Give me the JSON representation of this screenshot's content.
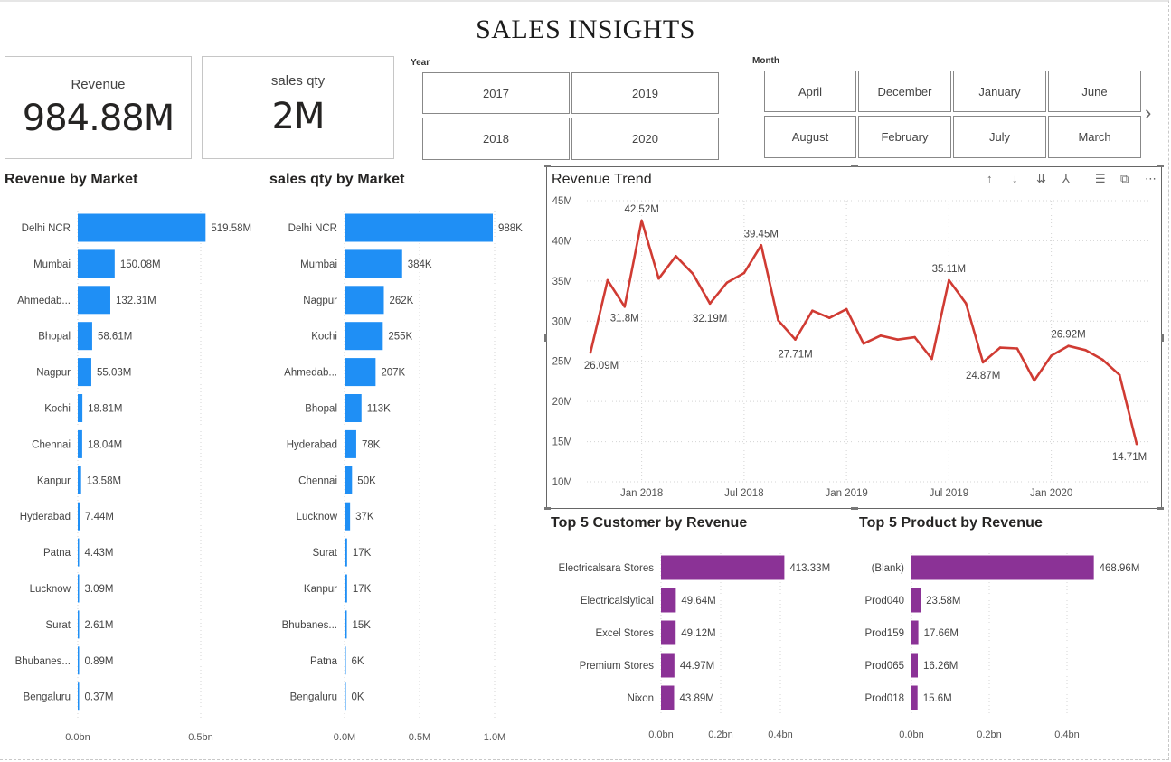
{
  "page": {
    "title": "SALES INSIGHTS"
  },
  "cards": {
    "revenue": {
      "label": "Revenue",
      "value": "984.88M"
    },
    "qty": {
      "label": "sales qty",
      "value": "2M"
    }
  },
  "year_slicer": {
    "title": "Year",
    "options": [
      "2017",
      "2019",
      "2018",
      "2020"
    ]
  },
  "month_slicer": {
    "title": "Month",
    "options": [
      "April",
      "December",
      "January",
      "June",
      "August",
      "February",
      "July",
      "March"
    ],
    "next_icon": "chevron-right-icon"
  },
  "trend_tools": {
    "icons": [
      "arrow-up-icon",
      "arrow-down-icon",
      "double-arrow-down-icon",
      "expand-hierarchy-icon",
      "filter-icon",
      "focus-mode-icon",
      "more-options-icon"
    ],
    "glyphs": [
      "↑",
      "↓",
      "⇊",
      "⅄",
      "☰",
      "⧉",
      "⋯"
    ]
  },
  "colors": {
    "blue": "#1f8ff5",
    "red": "#d03b33",
    "purple": "#8b3296",
    "grid": "#d4d4d4"
  },
  "chart_data": [
    {
      "id": "revenue_by_market",
      "type": "bar",
      "orientation": "horizontal",
      "title": "Revenue by Market",
      "categories": [
        "Delhi NCR",
        "Mumbai",
        "Ahmedab...",
        "Bhopal",
        "Nagpur",
        "Kochi",
        "Chennai",
        "Kanpur",
        "Hyderabad",
        "Patna",
        "Lucknow",
        "Surat",
        "Bhubanes...",
        "Bengaluru"
      ],
      "values": [
        519.58,
        150.08,
        132.31,
        58.61,
        55.03,
        18.81,
        18.04,
        13.58,
        7.44,
        4.43,
        3.09,
        2.61,
        0.89,
        0.37
      ],
      "labels": [
        "519.58M",
        "150.08M",
        "132.31M",
        "58.61M",
        "55.03M",
        "18.81M",
        "18.04M",
        "13.58M",
        "7.44M",
        "4.43M",
        "3.09M",
        "2.61M",
        "0.89M",
        "0.37M"
      ],
      "unit": "M",
      "xlim": [
        0,
        500
      ],
      "xticks": [
        0,
        500
      ],
      "xtick_labels": [
        "0.0bn",
        "0.5bn"
      ]
    },
    {
      "id": "qty_by_market",
      "type": "bar",
      "orientation": "horizontal",
      "title": "sales qty by Market",
      "categories": [
        "Delhi NCR",
        "Mumbai",
        "Nagpur",
        "Kochi",
        "Ahmedab...",
        "Bhopal",
        "Hyderabad",
        "Chennai",
        "Lucknow",
        "Surat",
        "Kanpur",
        "Bhubanes...",
        "Patna",
        "Bengaluru"
      ],
      "values": [
        988,
        384,
        262,
        255,
        207,
        113,
        78,
        50,
        37,
        17,
        17,
        15,
        6,
        0
      ],
      "labels": [
        "988K",
        "384K",
        "262K",
        "255K",
        "207K",
        "113K",
        "78K",
        "50K",
        "37K",
        "17K",
        "17K",
        "15K",
        "6K",
        "0K"
      ],
      "unit": "K",
      "xlim": [
        0,
        1000
      ],
      "xticks": [
        0,
        500,
        1000
      ],
      "xtick_labels": [
        "0.0M",
        "0.5M",
        "1.0M"
      ]
    },
    {
      "id": "revenue_trend",
      "type": "line",
      "title": "Revenue Trend",
      "x": [
        "2017-10",
        "2017-11",
        "2017-12",
        "2018-01",
        "2018-02",
        "2018-03",
        "2018-04",
        "2018-05",
        "2018-06",
        "2018-07",
        "2018-08",
        "2018-09",
        "2018-10",
        "2018-11",
        "2018-12",
        "2019-01",
        "2019-02",
        "2019-03",
        "2019-04",
        "2019-05",
        "2019-06",
        "2019-07",
        "2019-08",
        "2019-09",
        "2019-10",
        "2019-11",
        "2019-12",
        "2020-01",
        "2020-02",
        "2020-03",
        "2020-04",
        "2020-05",
        "2020-06"
      ],
      "values": [
        26.09,
        35.1,
        31.8,
        42.52,
        35.3,
        38.1,
        35.9,
        32.19,
        34.8,
        36.0,
        39.45,
        30.1,
        27.71,
        31.3,
        30.4,
        31.5,
        27.2,
        28.2,
        27.7,
        28.0,
        25.3,
        35.11,
        32.2,
        24.87,
        26.7,
        26.6,
        22.6,
        25.7,
        26.92,
        26.4,
        25.2,
        23.3,
        14.71
      ],
      "labels": [
        {
          "index": 0,
          "text": "26.09M"
        },
        {
          "index": 2,
          "text": "31.8M"
        },
        {
          "index": 3,
          "text": "42.52M"
        },
        {
          "index": 7,
          "text": "32.19M"
        },
        {
          "index": 10,
          "text": "39.45M"
        },
        {
          "index": 12,
          "text": "27.71M"
        },
        {
          "index": 21,
          "text": "35.11M"
        },
        {
          "index": 23,
          "text": "24.87M"
        },
        {
          "index": 28,
          "text": "26.92M"
        },
        {
          "index": 32,
          "text": "14.71M"
        }
      ],
      "ylim": [
        10,
        45
      ],
      "yticks": [
        10,
        15,
        20,
        25,
        30,
        35,
        40,
        45
      ],
      "ytick_labels": [
        "10M",
        "15M",
        "20M",
        "25M",
        "30M",
        "35M",
        "40M",
        "45M"
      ],
      "xtick_labels": [
        {
          "index": 3,
          "text": "Jan 2018"
        },
        {
          "index": 9,
          "text": "Jul 2018"
        },
        {
          "index": 15,
          "text": "Jan 2019"
        },
        {
          "index": 21,
          "text": "Jul 2019"
        },
        {
          "index": 27,
          "text": "Jan 2020"
        }
      ]
    },
    {
      "id": "top5_customer",
      "type": "bar",
      "orientation": "horizontal",
      "title": "Top 5 Customer by Revenue",
      "categories": [
        "Electricalsara Stores",
        "Electricalslytical",
        "Excel Stores",
        "Premium Stores",
        "Nixon"
      ],
      "values": [
        413.33,
        49.64,
        49.12,
        44.97,
        43.89
      ],
      "labels": [
        "413.33M",
        "49.64M",
        "49.12M",
        "44.97M",
        "43.89M"
      ],
      "unit": "M",
      "xlim": [
        0,
        400
      ],
      "xticks": [
        0,
        200,
        400
      ],
      "xtick_labels": [
        "0.0bn",
        "0.2bn",
        "0.4bn"
      ]
    },
    {
      "id": "top5_product",
      "type": "bar",
      "orientation": "horizontal",
      "title": "Top 5 Product by Revenue",
      "categories": [
        "(Blank)",
        "Prod040",
        "Prod159",
        "Prod065",
        "Prod018"
      ],
      "values": [
        468.96,
        23.58,
        17.66,
        16.26,
        15.6
      ],
      "labels": [
        "468.96M",
        "23.58M",
        "17.66M",
        "16.26M",
        "15.6M"
      ],
      "unit": "M",
      "xlim": [
        0,
        400
      ],
      "xticks": [
        0,
        200,
        400
      ],
      "xtick_labels": [
        "0.0bn",
        "0.2bn",
        "0.4bn"
      ]
    }
  ]
}
